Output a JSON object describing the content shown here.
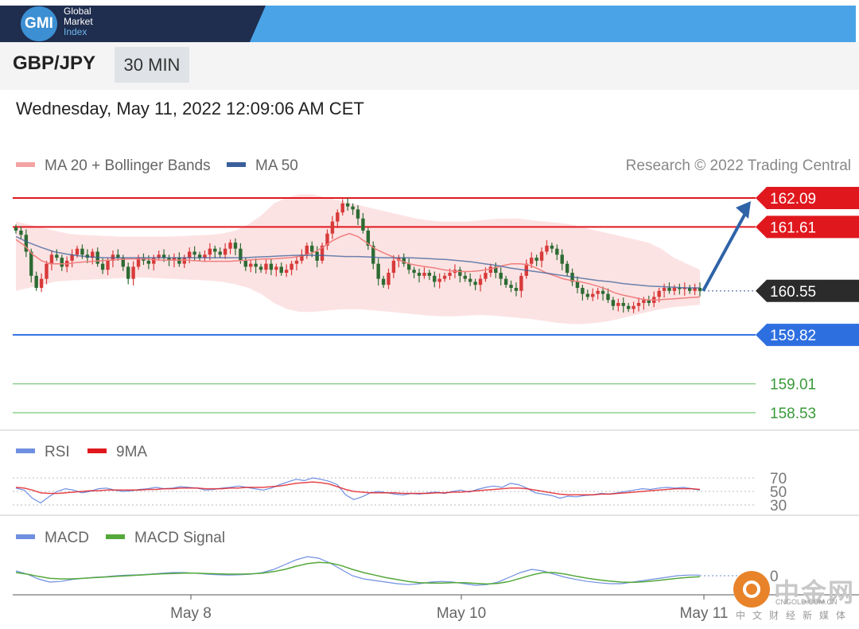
{
  "header": {
    "logo_abbrev": "GMI",
    "logo_words": [
      "Global",
      "Market",
      "Index"
    ],
    "pair": "GBP/JPY",
    "timeframe": "30 MIN",
    "datetime": "Wednesday, May 11, 2022 12:09:06 AM CET"
  },
  "colors": {
    "ma20": "#f07f7f",
    "ma50": "#3a5f9a",
    "bands": "#fbdada",
    "resistance": "#e0181e",
    "support": "#2e6fe0",
    "support_far": "#8fcf8f",
    "current": "#2b2b2b",
    "bull": "#d83a3a",
    "bear": "#2d6b33",
    "rsi": "#6f8fe0",
    "rsi_ma": "#e0181e",
    "macd": "#6f8fe0",
    "macd_signal": "#54a83a",
    "arrow": "#2f63a8"
  },
  "watermark": {
    "text": "中金网",
    "url": "CNGOLD.COM.CN",
    "sub": "中文财经新媒体"
  },
  "chart_data": [
    {
      "type": "candlestick",
      "title": "",
      "legend": [
        {
          "name": "MA 20 + Bollinger Bands",
          "color": "#f07f7f"
        },
        {
          "name": "MA 50",
          "color": "#3a5f9a"
        }
      ],
      "legend_position": "top-left",
      "copyright": "Research © 2022 Trading Central",
      "ylim": [
        158.3,
        162.3
      ],
      "x_ticks": [
        "May 8",
        "May 10",
        "May 11"
      ],
      "levels": [
        {
          "value": 162.09,
          "label": "162.09",
          "kind": "resistance"
        },
        {
          "value": 161.61,
          "label": "161.61",
          "kind": "resistance"
        },
        {
          "value": 160.55,
          "label": "160.55",
          "kind": "current"
        },
        {
          "value": 159.82,
          "label": "159.82",
          "kind": "support"
        },
        {
          "value": 159.01,
          "label": "159.01",
          "kind": "support_far"
        },
        {
          "value": 158.53,
          "label": "158.53",
          "kind": "support_far"
        }
      ],
      "close": [
        161.55,
        161.48,
        161.2,
        160.8,
        160.6,
        160.75,
        161.0,
        161.15,
        161.1,
        160.95,
        161.05,
        161.15,
        161.25,
        161.15,
        161.1,
        161.2,
        161.0,
        160.9,
        161.05,
        161.15,
        161.1,
        160.95,
        160.75,
        160.95,
        161.1,
        161.05,
        161.0,
        161.1,
        161.15,
        161.1,
        161.05,
        161.1,
        161.0,
        161.1,
        161.2,
        161.15,
        161.1,
        161.15,
        161.25,
        161.2,
        161.15,
        161.25,
        161.35,
        161.25,
        161.05,
        160.95,
        161.0,
        160.95,
        160.9,
        161.0,
        160.9,
        160.95,
        160.85,
        160.9,
        161.0,
        161.05,
        161.15,
        161.3,
        161.2,
        161.05,
        161.3,
        161.5,
        161.7,
        161.85,
        162.0,
        161.95,
        161.9,
        161.75,
        161.55,
        161.3,
        161.0,
        160.75,
        160.65,
        160.85,
        161.05,
        161.1,
        161.0,
        160.9,
        160.85,
        160.8,
        160.85,
        160.8,
        160.7,
        160.75,
        160.8,
        160.85,
        160.9,
        160.8,
        160.75,
        160.7,
        160.65,
        160.75,
        160.85,
        160.95,
        160.85,
        160.75,
        160.65,
        160.6,
        160.55,
        160.8,
        161.0,
        161.1,
        161.05,
        161.2,
        161.3,
        161.25,
        161.15,
        161.0,
        160.85,
        160.7,
        160.6,
        160.5,
        160.45,
        160.5,
        160.55,
        160.5,
        160.4,
        160.3,
        160.35,
        160.3,
        160.25,
        160.3,
        160.35,
        160.4,
        160.35,
        160.45,
        160.55,
        160.6,
        160.55,
        160.6,
        160.58,
        160.6,
        160.55,
        160.6,
        160.55
      ],
      "ma20": [
        161.4,
        161.3,
        161.15,
        161.05,
        161.0,
        161.0,
        161.0,
        161.02,
        161.03,
        161.04,
        161.05,
        161.06,
        161.07,
        161.08,
        161.08,
        161.08,
        161.07,
        161.06,
        161.06,
        161.06,
        161.06,
        161.05,
        161.04,
        161.04,
        161.04,
        161.04,
        161.05,
        161.06,
        161.07,
        161.08,
        161.08,
        161.09,
        161.1,
        161.12,
        161.15,
        161.2,
        161.28,
        161.38,
        161.45,
        161.5,
        161.45,
        161.35,
        161.25,
        161.18,
        161.12,
        161.05,
        161.0,
        160.97,
        160.95,
        160.93,
        160.9,
        160.88,
        160.87,
        160.87,
        160.88,
        160.9,
        160.93,
        160.97,
        161.0,
        161.0,
        160.98,
        160.92,
        160.85,
        160.8,
        160.75,
        160.72,
        160.7,
        160.67,
        160.63,
        160.58,
        160.52,
        160.48,
        160.45,
        160.42,
        160.4,
        160.4,
        160.41,
        160.42,
        160.43,
        160.44,
        160.45
      ],
      "ma50": [
        161.45,
        161.35,
        161.27,
        161.2,
        161.16,
        161.13,
        161.11,
        161.1,
        161.1,
        161.1,
        161.1,
        161.1,
        161.1,
        161.1,
        161.1,
        161.1,
        161.1,
        161.1,
        161.1,
        161.11,
        161.12,
        161.13,
        161.14,
        161.14,
        161.14,
        161.13,
        161.12,
        161.12,
        161.11,
        161.1,
        161.1,
        161.1,
        161.09,
        161.08,
        161.07,
        161.05,
        161.03,
        161.0,
        160.97,
        160.93,
        160.9,
        160.87,
        160.84,
        160.81,
        160.78,
        160.75,
        160.72,
        160.7,
        160.67,
        160.65,
        160.63,
        160.62,
        160.61,
        160.6,
        160.6
      ],
      "bb_upper": [
        161.7,
        161.65,
        161.6,
        161.55,
        161.5,
        161.48,
        161.47,
        161.46,
        161.45,
        161.45,
        161.45,
        161.45,
        161.45,
        161.46,
        161.47,
        161.48,
        161.5,
        161.55,
        161.65,
        161.8,
        162.0,
        162.1,
        162.15,
        162.15,
        162.1,
        162.05,
        162.0,
        161.95,
        161.9,
        161.85,
        161.8,
        161.75,
        161.72,
        161.7,
        161.7,
        161.7,
        161.72,
        161.74,
        161.75,
        161.75,
        161.72,
        161.7,
        161.68,
        161.65,
        161.6,
        161.55,
        161.5,
        161.45,
        161.4,
        161.35,
        161.25,
        161.1,
        161.0,
        160.9
      ],
      "bb_lower": [
        160.55,
        160.6,
        160.65,
        160.7,
        160.72,
        160.73,
        160.74,
        160.75,
        160.76,
        160.77,
        160.77,
        160.76,
        160.75,
        160.74,
        160.73,
        160.72,
        160.7,
        160.66,
        160.6,
        160.5,
        160.35,
        160.25,
        160.2,
        160.2,
        160.22,
        160.24,
        160.25,
        160.24,
        160.22,
        160.2,
        160.18,
        160.16,
        160.14,
        160.13,
        160.13,
        160.14,
        160.15,
        160.14,
        160.12,
        160.1,
        160.08,
        160.05,
        160.02,
        160.0,
        160.0,
        160.02,
        160.05,
        160.1,
        160.15,
        160.2,
        160.25,
        160.28,
        160.3,
        160.32
      ],
      "projection": {
        "from": 160.55,
        "to": 162.09
      }
    },
    {
      "type": "line",
      "title": "",
      "series": [
        {
          "name": "RSI",
          "color": "#6f8fe0",
          "values": [
            55,
            52,
            40,
            33,
            42,
            50,
            54,
            52,
            48,
            50,
            54,
            55,
            52,
            50,
            51,
            53,
            54,
            56,
            54,
            55,
            57,
            56,
            55,
            52,
            53,
            55,
            56,
            58,
            56,
            54,
            52,
            55,
            60,
            64,
            68,
            66,
            70,
            68,
            65,
            60,
            45,
            38,
            42,
            48,
            50,
            48,
            46,
            45,
            47,
            46,
            48,
            49,
            47,
            50,
            52,
            49,
            53,
            56,
            58,
            56,
            62,
            60,
            55,
            48,
            46,
            44,
            40,
            43,
            42,
            44,
            45,
            47,
            46,
            48,
            50,
            52,
            54,
            53,
            55,
            56,
            55,
            56,
            54,
            52
          ]
        },
        {
          "name": "9MA",
          "color": "#e0181e",
          "values": [
            56,
            55,
            52,
            48,
            47,
            47,
            48,
            49,
            50,
            51,
            51,
            52,
            52,
            52,
            52,
            52,
            53,
            53,
            54,
            54,
            55,
            55,
            55,
            54,
            54,
            54,
            55,
            55,
            56,
            56,
            56,
            57,
            58,
            60,
            62,
            63,
            64,
            63,
            61,
            57,
            53,
            50,
            49,
            48,
            48,
            48,
            48,
            47,
            47,
            47,
            47,
            48,
            48,
            49,
            49,
            50,
            51,
            52,
            53,
            54,
            55,
            55,
            54,
            52,
            50,
            48,
            46,
            45,
            45,
            45,
            45,
            46,
            46,
            47,
            48,
            49,
            50,
            51,
            52,
            53,
            54,
            54,
            54,
            53
          ]
        }
      ],
      "levels": [
        70,
        50,
        30
      ],
      "ylim": [
        25,
        80
      ],
      "legend_position": "top-left"
    },
    {
      "type": "line",
      "title": "",
      "series": [
        {
          "name": "MACD",
          "color": "#6f8fe0",
          "values": [
            0.15,
            0.05,
            -0.1,
            -0.2,
            -0.18,
            -0.12,
            -0.08,
            -0.05,
            -0.03,
            0.0,
            0.02,
            0.03,
            0.05,
            0.08,
            0.1,
            0.1,
            0.08,
            0.05,
            0.03,
            0.02,
            0.03,
            0.05,
            0.1,
            0.2,
            0.35,
            0.5,
            0.6,
            0.55,
            0.4,
            0.2,
            0.0,
            -0.1,
            -0.15,
            -0.2,
            -0.25,
            -0.28,
            -0.25,
            -0.2,
            -0.18,
            -0.2,
            -0.25,
            -0.3,
            -0.28,
            -0.2,
            -0.05,
            0.1,
            0.2,
            0.15,
            0.05,
            -0.05,
            -0.12,
            -0.18,
            -0.22,
            -0.25,
            -0.25,
            -0.2,
            -0.15,
            -0.1,
            -0.05,
            0.0,
            0.02,
            0.02
          ]
        },
        {
          "name": "MACD Signal",
          "color": "#54a83a",
          "values": [
            0.1,
            0.05,
            -0.02,
            -0.08,
            -0.1,
            -0.1,
            -0.08,
            -0.06,
            -0.04,
            -0.02,
            0.0,
            0.02,
            0.04,
            0.06,
            0.07,
            0.08,
            0.08,
            0.07,
            0.06,
            0.05,
            0.05,
            0.06,
            0.08,
            0.13,
            0.2,
            0.3,
            0.38,
            0.42,
            0.4,
            0.32,
            0.2,
            0.1,
            0.02,
            -0.06,
            -0.12,
            -0.18,
            -0.22,
            -0.23,
            -0.23,
            -0.22,
            -0.22,
            -0.24,
            -0.26,
            -0.24,
            -0.18,
            -0.08,
            0.02,
            0.1,
            0.1,
            0.05,
            -0.02,
            -0.08,
            -0.13,
            -0.17,
            -0.2,
            -0.21,
            -0.19,
            -0.16,
            -0.12,
            -0.08,
            -0.05,
            -0.03
          ]
        }
      ],
      "levels": [
        0
      ],
      "level_labels": [
        "0"
      ],
      "ylim": [
        -0.45,
        0.75
      ],
      "x_ticks": [
        "May 8",
        "May 10",
        "May 11"
      ],
      "legend_position": "top-left"
    }
  ]
}
